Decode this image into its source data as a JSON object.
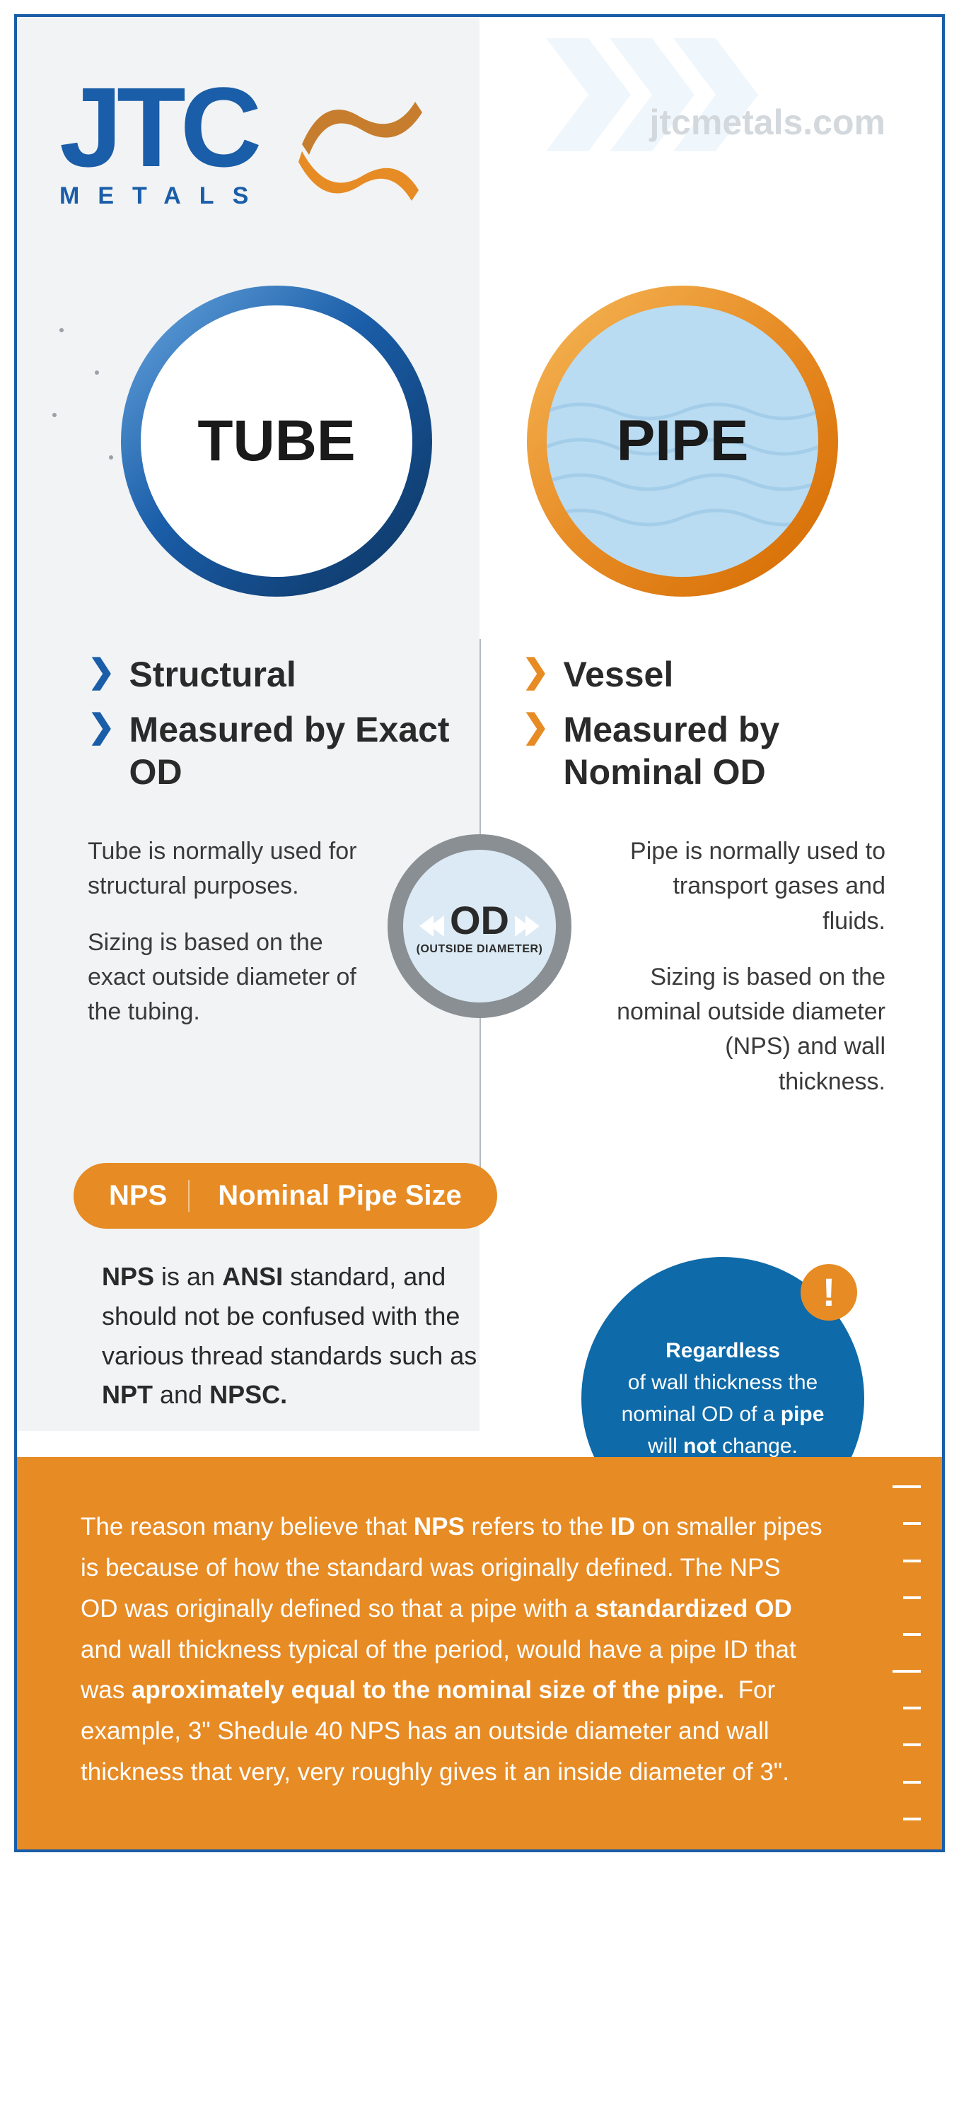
{
  "brand": {
    "logo_text": "JTC",
    "logo_sub": "METALS",
    "url": "jtcmetals.com",
    "primary_color": "#1a5da8",
    "accent_color": "#e78b24",
    "gray_bg": "#f1f3f4"
  },
  "tube": {
    "label": "TUBE",
    "ring_color": "#1a5da8",
    "fill_color": "#ffffff",
    "bullets": [
      "Structural",
      "Measured by Exact OD"
    ],
    "chevron_color": "#1a5da8",
    "desc1": "Tube is normally used for structural purposes.",
    "desc2": "Sizing is based on the exact outside diameter of the tubing."
  },
  "pipe": {
    "label": "PIPE",
    "ring_color": "#e78b24",
    "fill_color": "#b9dcf2",
    "bullets": [
      "Vessel",
      "Measured by Nominal OD"
    ],
    "chevron_color": "#e78b24",
    "desc1": "Pipe is normally used to transport gases and fluids.",
    "desc2": "Sizing is based on the nominal outside diameter (NPS) and wall thickness."
  },
  "od_badge": {
    "label": "OD",
    "sub": "(OUTSIDE DIAMETER)",
    "fill": "#dbeaf4",
    "ring": "#8a8f94"
  },
  "nps": {
    "abbr": "NPS",
    "full": "Nominal Pipe Size",
    "pill_color": "#e78b24",
    "desc_html": "<b>NPS</b> is an <b>ANSI</b> standard, and should not be confused with the various thread standards such as <b>NPT</b> and <b>NPSC.</b>"
  },
  "regardless": {
    "circle_color": "#0e6aa8",
    "exclaim_color": "#e78b24",
    "exclaim_char": "!",
    "text_html": "<b>Regardless</b><br>of wall thickness the nominal OD of a <b>pipe</b> will <b>not</b> change."
  },
  "orange_box": {
    "bg": "#e78b24",
    "text_html": "The reason many believe that <b>NPS</b> refers to the <b>ID</b> on smaller pipes is because of how the standard was originally defined. The NPS OD was originally defined so that a pipe with a <b>standardized OD</b> and wall thickness typical of the period, would have a pipe ID that was <b>aproximately equal to the nominal size of the pipe.</b> &nbsp;For example, 3\" Shedule 40 NPS has an outside diameter and wall thickness that very, very roughly gives it an inside diameter of 3\"."
  }
}
